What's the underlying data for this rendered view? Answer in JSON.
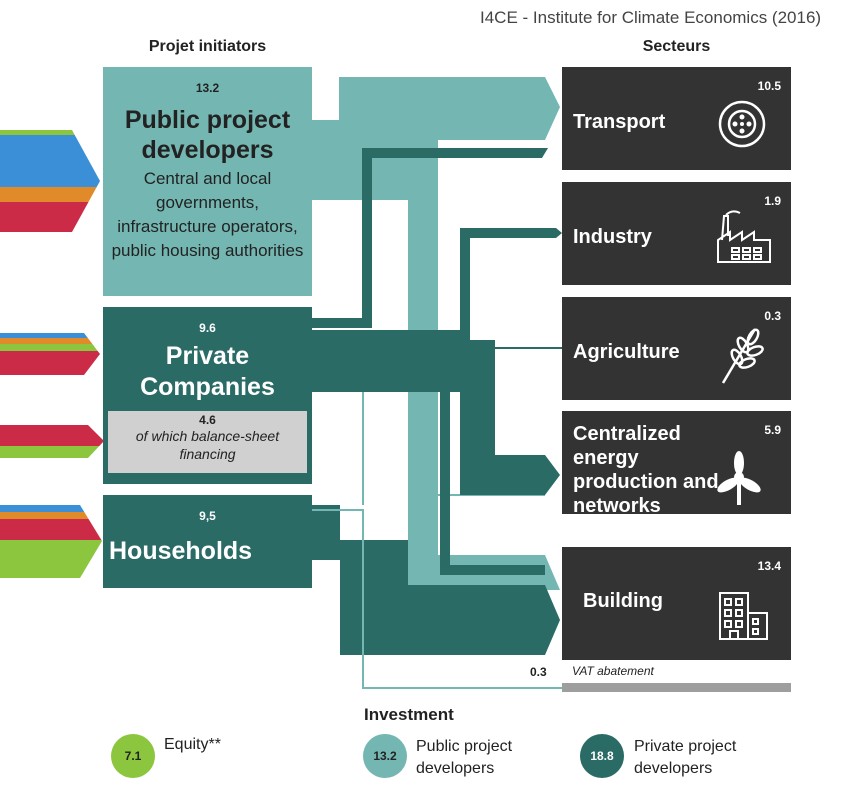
{
  "source_credit": "I4CE - Institute for Climate Economics (2016)",
  "headers": {
    "left": "Projet initiators",
    "right": "Secteurs"
  },
  "colors": {
    "public": "#74b7b2",
    "private": "#2a6b66",
    "equity": "#8cc63f",
    "sector_box": "#333333",
    "vat_bar": "#9e9e9e",
    "stripe_blue": "#3b8fd6",
    "stripe_orange": "#e08a2a",
    "stripe_red": "#cc2b48",
    "stripe_green": "#8cc63f"
  },
  "initiators": {
    "public": {
      "value": "13.2",
      "title": "Public project developers",
      "desc": "Central and local governments, infrastructure operators, public housing authorities"
    },
    "private": {
      "value": "9.6",
      "title": "Private Companies",
      "sub_value": "4.6",
      "sub_desc": "of which balance-sheet financing"
    },
    "households": {
      "value": "9,5",
      "title": "Households"
    }
  },
  "sectors": [
    {
      "label": "Transport",
      "value": "10.5",
      "icon": "wheel-icon"
    },
    {
      "label": "Industry",
      "value": "1.9",
      "icon": "factory-icon"
    },
    {
      "label": "Agriculture",
      "value": "0.3",
      "icon": "wheat-icon"
    },
    {
      "label": "Centralized energy production and networks",
      "value": "5.9",
      "icon": "wind-turbine-icon"
    },
    {
      "label": "Building",
      "value": "13.4",
      "icon": "building-icon"
    }
  ],
  "vat": {
    "value": "0.3",
    "label": "VAT abatement"
  },
  "legend": {
    "title": "Investment",
    "items": [
      {
        "value": "7.1",
        "label": "Equity**",
        "color": "#8cc63f"
      },
      {
        "value": "13.2",
        "label": "Public project developers",
        "color": "#74b7b2"
      },
      {
        "value": "18.8",
        "label": "Private project developers",
        "color": "#2a6b66"
      }
    ]
  }
}
